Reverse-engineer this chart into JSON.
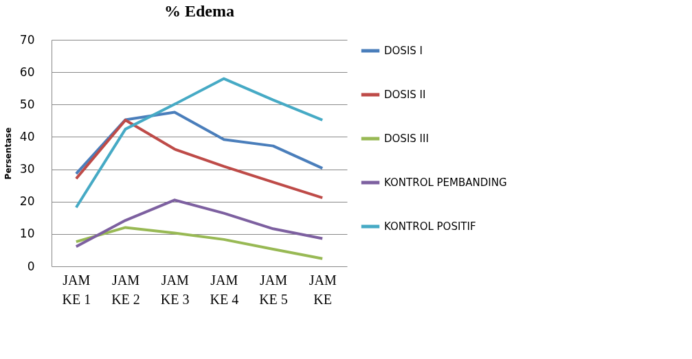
{
  "chart_data": {
    "type": "line",
    "title": "% Edema",
    "ylabel": "Persentase",
    "categories": [
      "JAM KE 1",
      "JAM KE 2",
      "JAM KE 3",
      "JAM KE 4",
      "JAM KE 5",
      "JAM KE"
    ],
    "series": [
      {
        "name": "DOSIS I",
        "color": "#4a7ebb",
        "values": [
          28.6,
          45.3,
          47.6,
          39.2,
          37.2,
          30.3
        ]
      },
      {
        "name": "DOSIS II",
        "color": "#be4b48",
        "values": [
          27.1,
          45.2,
          36.2,
          30.9,
          26.0,
          21.2
        ]
      },
      {
        "name": "DOSIS III",
        "color": "#98b954",
        "values": [
          7.6,
          12.0,
          10.3,
          8.3,
          5.3,
          2.4
        ]
      },
      {
        "name": "KONTROL PEMBANDING",
        "color": "#7d60a0",
        "values": [
          6.1,
          14.2,
          20.5,
          16.4,
          11.6,
          8.6
        ]
      },
      {
        "name": "KONTROL POSITIF",
        "color": "#46aac5",
        "values": [
          18.2,
          42.4,
          50.1,
          58.0,
          51.4,
          45.2
        ]
      }
    ],
    "ylim": [
      0,
      70
    ],
    "yticks": [
      0,
      10,
      20,
      30,
      40,
      50,
      60,
      70
    ],
    "grid": "y",
    "legend": "right",
    "marker": "none",
    "line_style": "solid"
  }
}
